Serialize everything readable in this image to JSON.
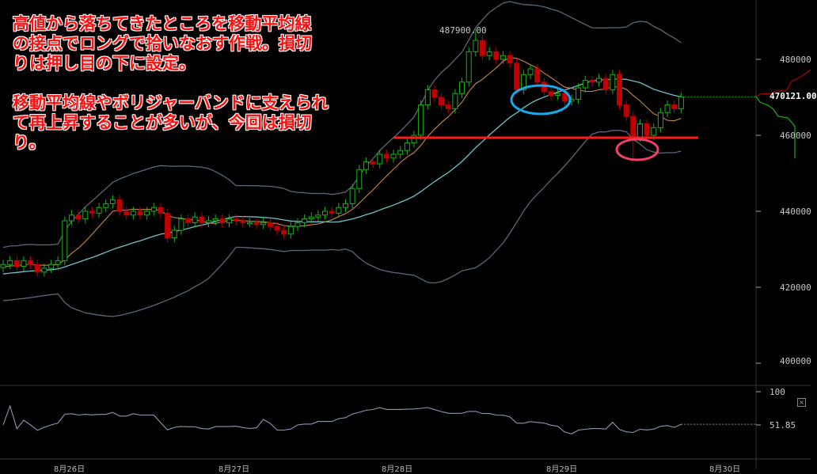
{
  "annotation": {
    "para1": "高値から落ちてきたところを移動平均線\nの接点でロングで拾いなおす作戦。損切\nりは押し目の下に設定。",
    "para2": "移動平均線やボリジャーバンドに支えられ\nて再上昇することが多いが、今回は損切\nり。"
  },
  "price_axis": {
    "ticks": [
      "480000",
      "460000",
      "440000",
      "420000",
      "400000"
    ],
    "tick_values": [
      480000,
      460000,
      440000,
      420000,
      400000
    ],
    "current_price": "470121.00",
    "high_label": "487900.00"
  },
  "indicator_axis": {
    "top": "100",
    "current": "51.85",
    "close_label": "×"
  },
  "dates": [
    "8月26日",
    "8月27日",
    "8月28日",
    "8月29日",
    "8月30日"
  ],
  "colors": {
    "up": "#18b418",
    "down": "#c00000",
    "ma_short": "#c8884a",
    "band_mid": "#6fc3c8",
    "band": "#5a6878",
    "support_line": "#ff1a1a",
    "circle_blue": "#1aa8e8",
    "circle_pink": "#f0406a"
  },
  "candles_close_thousands": [
    426,
    427,
    425.5,
    427,
    426,
    424,
    425,
    426,
    427,
    437.5,
    439,
    438,
    440,
    439.5,
    441,
    442,
    443,
    440,
    439,
    440,
    439,
    440,
    441,
    439.5,
    433,
    435,
    438,
    437,
    438.5,
    437,
    437.5,
    438,
    437,
    438,
    437.5,
    437,
    437,
    436.5,
    437,
    436,
    435,
    434,
    436,
    437,
    438,
    438.5,
    439,
    440,
    439.5,
    441,
    442,
    446,
    451,
    453,
    452.5,
    455,
    454,
    455,
    456,
    458,
    460,
    468,
    472,
    470,
    468,
    467,
    471,
    474,
    482,
    485,
    481,
    482,
    480,
    481,
    479,
    472,
    476,
    477.5,
    474,
    471.5,
    470.5,
    471,
    469,
    469.5,
    472.5,
    474.5,
    474,
    475,
    472,
    476,
    468,
    465,
    459.5,
    463,
    460,
    462,
    466,
    468,
    467,
    470.121
  ],
  "notable": {
    "high": 487.9,
    "high_index": 69,
    "low": 454,
    "low_index": 92
  }
}
